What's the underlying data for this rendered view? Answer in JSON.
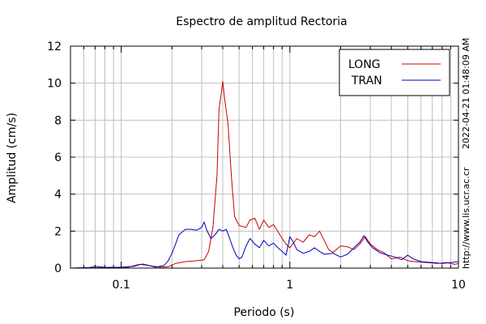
{
  "chart_data": {
    "type": "line",
    "title": "Espectro de amplitud Rectoria",
    "xlabel": "Periodo (s)",
    "ylabel": "Amplitud (cm/s)",
    "x_scale": "log",
    "xlim": [
      0.05,
      10
    ],
    "ylim": [
      0,
      12
    ],
    "x_ticks": [
      0.1,
      1,
      10
    ],
    "x_tick_labels": [
      "0.1",
      "1",
      "10"
    ],
    "y_ticks": [
      0,
      2,
      4,
      6,
      8,
      10,
      12
    ],
    "y_tick_labels": [
      "0",
      "2",
      "4",
      "6",
      "8",
      "10",
      "12"
    ],
    "grid": true,
    "legend_position": "top-right",
    "timestamp": "2022-04-21 01:48:09 AM",
    "url": "http://www.lis.ucr.ac.cr",
    "series": [
      {
        "name": "LONG",
        "color": "#cc0000",
        "points": [
          [
            0.05,
            0.0
          ],
          [
            0.07,
            0.02
          ],
          [
            0.09,
            0.03
          ],
          [
            0.11,
            0.05
          ],
          [
            0.125,
            0.18
          ],
          [
            0.135,
            0.22
          ],
          [
            0.15,
            0.12
          ],
          [
            0.17,
            0.05
          ],
          [
            0.19,
            0.08
          ],
          [
            0.21,
            0.25
          ],
          [
            0.24,
            0.35
          ],
          [
            0.28,
            0.4
          ],
          [
            0.31,
            0.45
          ],
          [
            0.33,
            0.9
          ],
          [
            0.35,
            2.2
          ],
          [
            0.37,
            5.0
          ],
          [
            0.38,
            8.6
          ],
          [
            0.39,
            9.3
          ],
          [
            0.4,
            10.1
          ],
          [
            0.41,
            9.2
          ],
          [
            0.43,
            7.8
          ],
          [
            0.45,
            5.0
          ],
          [
            0.47,
            2.8
          ],
          [
            0.5,
            2.3
          ],
          [
            0.55,
            2.2
          ],
          [
            0.58,
            2.6
          ],
          [
            0.62,
            2.7
          ],
          [
            0.66,
            2.1
          ],
          [
            0.7,
            2.6
          ],
          [
            0.75,
            2.2
          ],
          [
            0.8,
            2.35
          ],
          [
            0.86,
            1.9
          ],
          [
            0.9,
            1.6
          ],
          [
            0.95,
            1.3
          ],
          [
            1.0,
            1.1
          ],
          [
            1.1,
            1.6
          ],
          [
            1.2,
            1.4
          ],
          [
            1.3,
            1.8
          ],
          [
            1.4,
            1.7
          ],
          [
            1.5,
            2.0
          ],
          [
            1.6,
            1.5
          ],
          [
            1.7,
            1.0
          ],
          [
            1.8,
            0.85
          ],
          [
            2.0,
            1.2
          ],
          [
            2.2,
            1.15
          ],
          [
            2.4,
            1.0
          ],
          [
            2.6,
            1.3
          ],
          [
            2.8,
            1.7
          ],
          [
            3.0,
            1.3
          ],
          [
            3.3,
            1.0
          ],
          [
            3.6,
            0.85
          ],
          [
            4.0,
            0.5
          ],
          [
            4.5,
            0.6
          ],
          [
            5.0,
            0.4
          ],
          [
            5.5,
            0.35
          ],
          [
            6.5,
            0.3
          ],
          [
            7.5,
            0.25
          ],
          [
            8.5,
            0.3
          ],
          [
            9.5,
            0.2
          ],
          [
            10.0,
            0.25
          ]
        ]
      },
      {
        "name": "TRAN",
        "color": "#0000bb",
        "points": [
          [
            0.05,
            0.0
          ],
          [
            0.065,
            0.03
          ],
          [
            0.07,
            0.1
          ],
          [
            0.08,
            0.04
          ],
          [
            0.1,
            0.05
          ],
          [
            0.12,
            0.1
          ],
          [
            0.13,
            0.2
          ],
          [
            0.145,
            0.15
          ],
          [
            0.16,
            0.05
          ],
          [
            0.18,
            0.15
          ],
          [
            0.19,
            0.4
          ],
          [
            0.2,
            0.8
          ],
          [
            0.21,
            1.3
          ],
          [
            0.22,
            1.8
          ],
          [
            0.24,
            2.1
          ],
          [
            0.26,
            2.1
          ],
          [
            0.28,
            2.05
          ],
          [
            0.3,
            2.2
          ],
          [
            0.31,
            2.5
          ],
          [
            0.32,
            2.1
          ],
          [
            0.34,
            1.6
          ],
          [
            0.36,
            1.8
          ],
          [
            0.38,
            2.1
          ],
          [
            0.4,
            2.0
          ],
          [
            0.42,
            2.1
          ],
          [
            0.44,
            1.6
          ],
          [
            0.46,
            1.1
          ],
          [
            0.48,
            0.7
          ],
          [
            0.5,
            0.5
          ],
          [
            0.52,
            0.6
          ],
          [
            0.55,
            1.2
          ],
          [
            0.58,
            1.6
          ],
          [
            0.62,
            1.3
          ],
          [
            0.66,
            1.1
          ],
          [
            0.7,
            1.5
          ],
          [
            0.75,
            1.2
          ],
          [
            0.8,
            1.35
          ],
          [
            0.85,
            1.1
          ],
          [
            0.9,
            0.9
          ],
          [
            0.95,
            0.7
          ],
          [
            1.0,
            1.7
          ],
          [
            1.05,
            1.4
          ],
          [
            1.1,
            1.0
          ],
          [
            1.2,
            0.8
          ],
          [
            1.3,
            0.9
          ],
          [
            1.4,
            1.1
          ],
          [
            1.5,
            0.9
          ],
          [
            1.6,
            0.75
          ],
          [
            1.8,
            0.8
          ],
          [
            2.0,
            0.6
          ],
          [
            2.2,
            0.75
          ],
          [
            2.4,
            1.1
          ],
          [
            2.6,
            1.4
          ],
          [
            2.75,
            1.75
          ],
          [
            2.9,
            1.4
          ],
          [
            3.1,
            1.1
          ],
          [
            3.4,
            0.85
          ],
          [
            3.8,
            0.7
          ],
          [
            4.2,
            0.6
          ],
          [
            4.6,
            0.45
          ],
          [
            5.0,
            0.7
          ],
          [
            5.4,
            0.5
          ],
          [
            6.0,
            0.35
          ],
          [
            7.0,
            0.3
          ],
          [
            8.0,
            0.25
          ],
          [
            9.0,
            0.3
          ],
          [
            10.0,
            0.35
          ]
        ]
      }
    ]
  }
}
